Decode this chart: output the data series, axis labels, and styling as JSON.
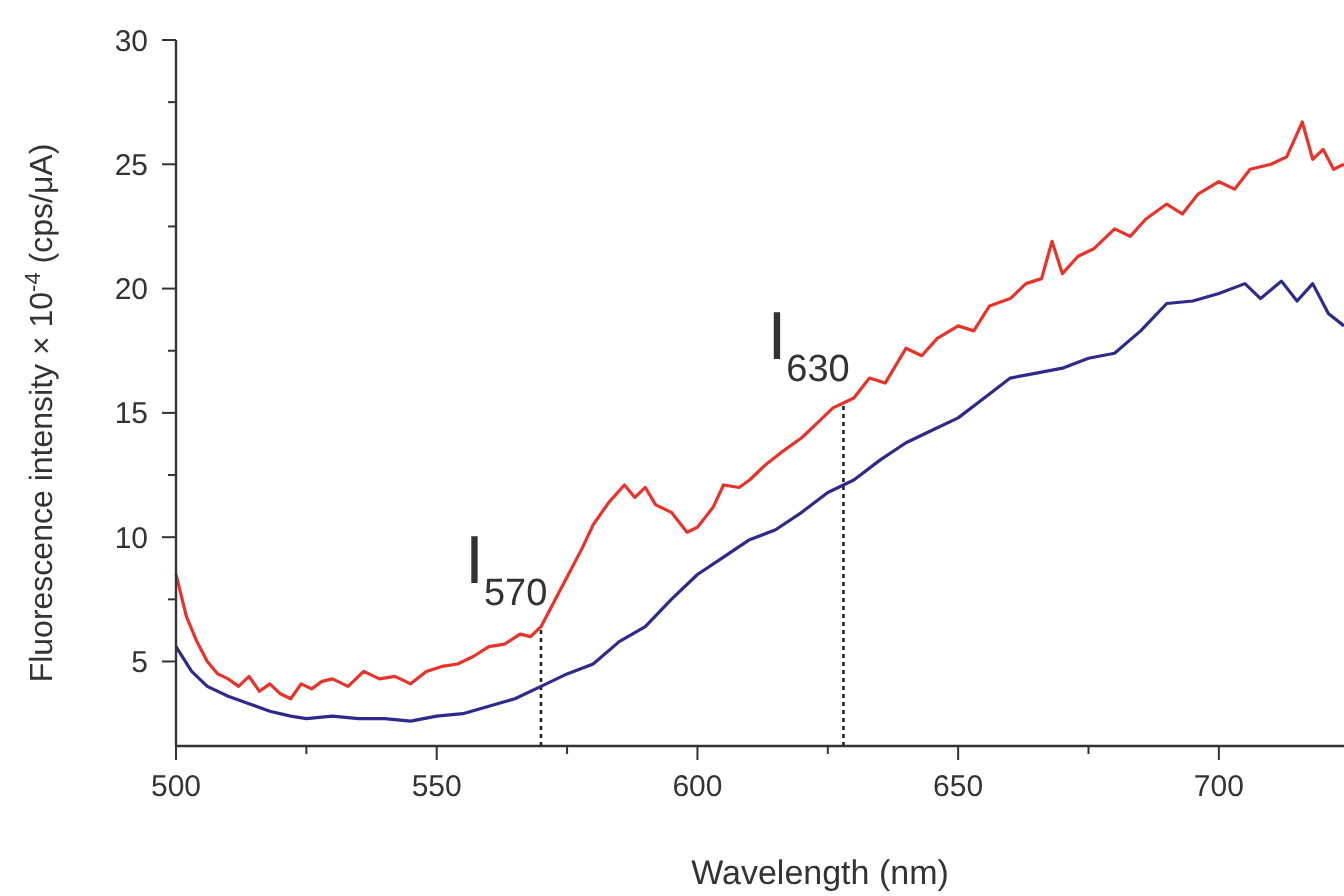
{
  "chart_data": {
    "type": "line",
    "xlabel": "Wavelength (nm)",
    "ylabel": "Fluorescence intensity × 10$^{-4}$ (cps/μA)",
    "xlim": [
      500,
      724
    ],
    "ylim": [
      1.6,
      30
    ],
    "xticks": [
      500,
      {
        "value": 525,
        "label": null
      },
      550,
      {
        "value": 575,
        "label": null
      },
      600,
      {
        "value": 625,
        "label": null
      },
      650,
      {
        "value": 675,
        "label": null
      },
      700
    ],
    "yticks": [
      5,
      {
        "value": 7.5,
        "label": null
      },
      10,
      {
        "value": 12.5,
        "label": null
      },
      15,
      {
        "value": 17.5,
        "label": null
      },
      20,
      {
        "value": 22.5,
        "label": null
      },
      25,
      {
        "value": 27.5,
        "label": null
      },
      30
    ],
    "grid": false,
    "marker": "none",
    "line_style": "solid",
    "series": [
      {
        "color": "#e8322a",
        "x": [
          500,
          502,
          504,
          506,
          508,
          510,
          512,
          514,
          516,
          518,
          520,
          522,
          524,
          526,
          528,
          530,
          533,
          536,
          539,
          542,
          545,
          548,
          551,
          554,
          557,
          560,
          563,
          566,
          568,
          570,
          572,
          575,
          578,
          580,
          583,
          586,
          588,
          590,
          592,
          595,
          598,
          600,
          603,
          605,
          608,
          610,
          613,
          616,
          620,
          623,
          626,
          628,
          630,
          633,
          636,
          640,
          643,
          646,
          650,
          653,
          656,
          660,
          663,
          666,
          668,
          670,
          673,
          676,
          680,
          683,
          686,
          690,
          693,
          696,
          700,
          703,
          706,
          710,
          713,
          716,
          718,
          720,
          722,
          724
        ],
        "values": [
          8.5,
          6.8,
          5.8,
          5.0,
          4.5,
          4.3,
          4.0,
          4.4,
          3.8,
          4.1,
          3.7,
          3.5,
          4.1,
          3.9,
          4.2,
          4.3,
          4.0,
          4.6,
          4.3,
          4.4,
          4.1,
          4.6,
          4.8,
          4.9,
          5.2,
          5.6,
          5.7,
          6.1,
          6.0,
          6.4,
          7.2,
          8.4,
          9.6,
          10.5,
          11.4,
          12.1,
          11.6,
          12.0,
          11.3,
          11.0,
          10.2,
          10.4,
          11.2,
          12.1,
          12.0,
          12.3,
          12.9,
          13.4,
          14.0,
          14.6,
          15.2,
          15.4,
          15.6,
          16.4,
          16.2,
          17.6,
          17.3,
          18.0,
          18.5,
          18.3,
          19.3,
          19.6,
          20.2,
          20.4,
          21.9,
          20.6,
          21.3,
          21.6,
          22.4,
          22.1,
          22.8,
          23.4,
          23.0,
          23.8,
          24.3,
          24.0,
          24.8,
          25.0,
          25.3,
          26.7,
          25.2,
          25.6,
          24.8,
          25.0
        ]
      },
      {
        "color": "#2e2a8c",
        "x": [
          500,
          503,
          506,
          510,
          514,
          518,
          522,
          525,
          530,
          535,
          540,
          545,
          550,
          555,
          560,
          565,
          570,
          575,
          580,
          585,
          590,
          595,
          600,
          605,
          610,
          615,
          620,
          625,
          630,
          635,
          640,
          645,
          650,
          655,
          660,
          665,
          670,
          675,
          680,
          685,
          690,
          695,
          700,
          705,
          708,
          712,
          715,
          718,
          721,
          724
        ],
        "values": [
          5.6,
          4.6,
          4.0,
          3.6,
          3.3,
          3.0,
          2.8,
          2.7,
          2.8,
          2.7,
          2.7,
          2.6,
          2.8,
          2.9,
          3.2,
          3.5,
          4.0,
          4.5,
          4.9,
          5.8,
          6.4,
          7.5,
          8.5,
          9.2,
          9.9,
          10.3,
          11.0,
          11.8,
          12.3,
          13.1,
          13.8,
          14.3,
          14.8,
          15.6,
          16.4,
          16.6,
          16.8,
          17.2,
          17.4,
          18.3,
          19.4,
          19.5,
          19.8,
          20.2,
          19.6,
          20.3,
          19.5,
          20.2,
          19.0,
          18.5
        ]
      }
    ],
    "ref_lines": [
      {
        "axis": "x",
        "value": 570,
        "label": "I$_{570}$",
        "line_style": "dotted"
      },
      {
        "axis": "x",
        "value": 628,
        "label": "I$_{630}$",
        "line_style": "dotted"
      }
    ]
  }
}
